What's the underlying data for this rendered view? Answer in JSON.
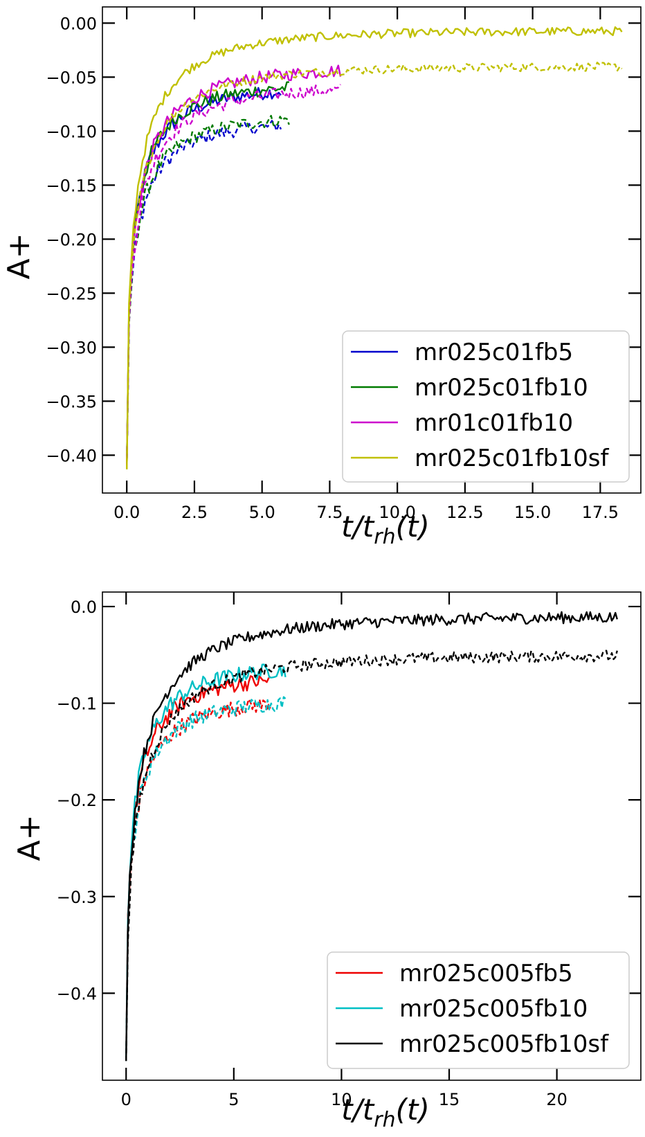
{
  "chart_data": [
    {
      "type": "line",
      "xlabel": "t/t_rh(t)",
      "ylabel": "A+",
      "xlim": [
        -0.9,
        19.0
      ],
      "ylim": [
        -0.435,
        0.015
      ],
      "xticks": [
        0.0,
        2.5,
        5.0,
        7.5,
        10.0,
        12.5,
        15.0,
        17.5
      ],
      "xtick_labels": [
        "0.0",
        "2.5",
        "5.0",
        "7.5",
        "10.0",
        "12.5",
        "15.0",
        "17.5"
      ],
      "yticks": [
        0.0,
        -0.05,
        -0.1,
        -0.15,
        -0.2,
        -0.25,
        -0.3,
        -0.35,
        -0.4
      ],
      "ytick_labels": [
        "0.00",
        "−0.05",
        "−0.10",
        "−0.15",
        "−0.20",
        "−0.25",
        "−0.30",
        "−0.35",
        "−0.40"
      ],
      "legend_position": "lower-right",
      "series": [
        {
          "name": "mr025c01fb5",
          "color": "#0000cc",
          "t_end": 5.7,
          "solid_end": -0.058,
          "dashed_end": -0.09,
          "start": -0.41,
          "rate": 1.1,
          "noise": 0.006
        },
        {
          "name": "mr025c01fb10",
          "color": "#007a00",
          "t_end": 6.0,
          "solid_end": -0.055,
          "dashed_end": -0.085,
          "start": -0.41,
          "rate": 1.1,
          "noise": 0.006
        },
        {
          "name": "mr01c01fb10",
          "color": "#cc00cc",
          "t_end": 7.9,
          "solid_end": -0.04,
          "dashed_end": -0.058,
          "start": -0.41,
          "rate": 1.0,
          "noise": 0.006
        },
        {
          "name": "mr025c01fb10sf",
          "color": "#c0c000",
          "t_end": 18.3,
          "solid_end": -0.007,
          "dashed_end": -0.04,
          "start": -0.413,
          "rate": 1.0,
          "noise": 0.004
        }
      ]
    },
    {
      "type": "line",
      "xlabel": "t/t_rh(t)",
      "ylabel": "A+",
      "xlim": [
        -1.1,
        23.9
      ],
      "ylim": [
        -0.49,
        0.015
      ],
      "xticks": [
        0,
        5,
        10,
        15,
        20
      ],
      "xtick_labels": [
        "0",
        "5",
        "10",
        "15",
        "20"
      ],
      "yticks": [
        0.0,
        -0.1,
        -0.2,
        -0.3,
        -0.4
      ],
      "ytick_labels": [
        "0.0",
        "−0.1",
        "−0.2",
        "−0.3",
        "−0.4"
      ],
      "legend_position": "lower-right",
      "series": [
        {
          "name": "mr025c005fb5",
          "color": "#ee0000",
          "t_end": 6.7,
          "solid_end": -0.07,
          "dashed_end": -0.095,
          "start": -0.47,
          "rate": 1.0,
          "noise": 0.008
        },
        {
          "name": "mr025c005fb10",
          "color": "#00bfc4",
          "t_end": 7.4,
          "solid_end": -0.06,
          "dashed_end": -0.095,
          "start": -0.47,
          "rate": 1.0,
          "noise": 0.008
        },
        {
          "name": "mr025c005fb10sf",
          "color": "#000000",
          "t_end": 22.8,
          "solid_end": -0.01,
          "dashed_end": -0.05,
          "start": -0.47,
          "rate": 0.8,
          "noise": 0.006
        }
      ]
    }
  ]
}
